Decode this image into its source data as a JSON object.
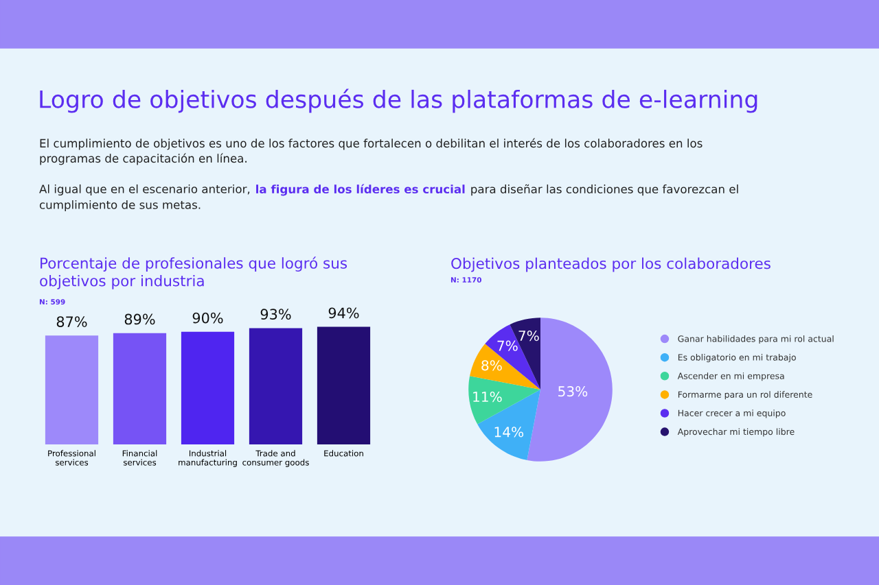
{
  "chart_data": [
    {
      "type": "other",
      "title": "Logro de objetivos después de las plataformas de e-learning",
      "annotations": [
        "El cumplimiento de objetivos es uno de los factores que fortalecen o debilitan el interés de los colaboradores en los",
        "programas de capacitación en línea.",
        "Al igual que en el escenario anterior,",
        "la figura de los líderes es crucial",
        "para diseñar las condiciones que favorezcan el",
        "cumplimiento de sus metas."
      ]
    },
    {
      "type": "bar",
      "title": "Porcentaje de profesionales que logró sus\nobjetivos por industria",
      "subtitle": "N: 599",
      "categories": [
        "Professional\nservices",
        "Financial\nservices",
        "Industrial\nmanufacturing",
        "Trade and\nconsumer goods",
        "Education"
      ],
      "values": [
        87,
        89,
        90,
        93,
        94
      ],
      "colors": [
        "#9d89fa",
        "#7653f5",
        "#4f25f0",
        "#3516b0",
        "#230e73"
      ],
      "value_labels": [
        "87%",
        "89%",
        "90%",
        "93%",
        "94%"
      ],
      "tick_labels": "x",
      "grid": false,
      "legend": false
    },
    {
      "type": "pie",
      "title": "Objetivos planteados por los colaboradores",
      "subtitle": "N: 1170",
      "categories": [
        "Ganar habilidades para mi rol actual",
        "Es obligatorio en mi trabajo",
        "Ascender en mi empresa",
        "Formarme para un rol diferente",
        "Hacer crecer a mi equipo",
        "Aprovechar mi tiempo libre"
      ],
      "values": [
        53,
        14,
        11,
        8,
        7,
        7
      ],
      "colors": [
        "#9d89fa",
        "#3fb0f7",
        "#3dd69b",
        "#ffb000",
        "#5a2df0",
        "#26136e"
      ],
      "value_labels": [
        "53%",
        "14%",
        "11%",
        "8%",
        "7%",
        "7%"
      ],
      "legend": "right"
    }
  ]
}
